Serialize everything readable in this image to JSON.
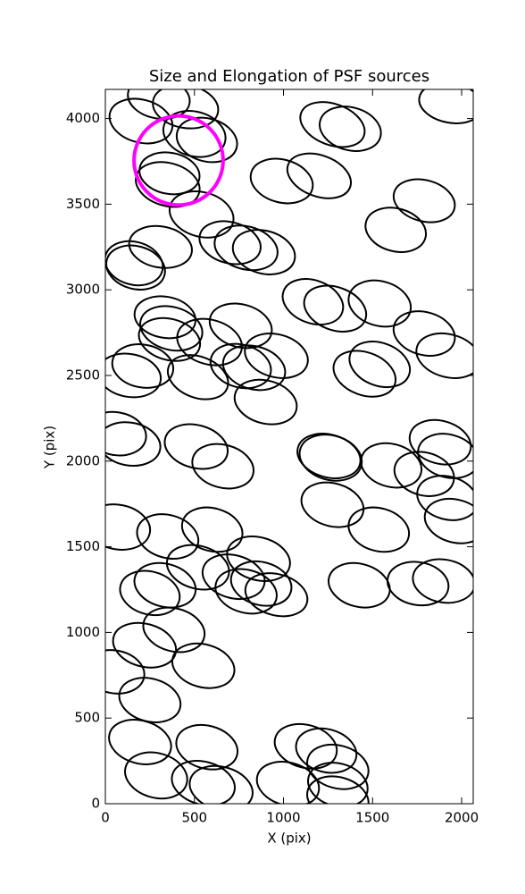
{
  "chart_data": {
    "type": "ellipse",
    "title": "Size and Elongation of PSF sources",
    "xlabel": "X (pix)",
    "ylabel": "Y (pix)",
    "xlim": [
      0,
      2065
    ],
    "ylim": [
      0,
      4170
    ],
    "xticks": [
      0,
      500,
      1000,
      1500,
      2000
    ],
    "yticks": [
      0,
      500,
      1000,
      1500,
      2000,
      2500,
      3000,
      3500,
      4000
    ],
    "series": [
      {
        "color": "#000000",
        "x": [
          200,
          300,
          450,
          500,
          570,
          1940,
          1275,
          1375,
          350,
          360,
          990,
          1200,
          1790,
          1630,
          540,
          310,
          160,
          170,
          700,
          790,
          890,
          1165,
          1290,
          1540,
          1790,
          1925,
          335,
          370,
          360,
          585,
          760,
          760,
          960,
          835,
          520,
          210,
          135,
          1540,
          1455,
          900,
          60,
          135,
          510,
          660,
          1265,
          1255,
          1605,
          1790,
          1880,
          1925,
          1920,
          1965,
          1275,
          1535,
          70,
          350,
          600,
          520,
          860,
          335,
          250,
          720,
          790,
          875,
          960,
          1425,
          1755,
          1900,
          385,
          220,
          50,
          550,
          250,
          195,
          570,
          285,
          550,
          650,
          1125,
          1240,
          1305,
          1025,
          1305,
          1305
        ],
        "y": [
          3985,
          4120,
          4070,
          3910,
          3875,
          4090,
          3965,
          3940,
          3615,
          3680,
          3635,
          3665,
          3520,
          3350,
          3440,
          3250,
          3155,
          3130,
          3275,
          3245,
          3220,
          2930,
          2890,
          2920,
          2745,
          2615,
          2840,
          2775,
          2710,
          2695,
          2790,
          2555,
          2615,
          2545,
          2490,
          2555,
          2500,
          2565,
          2510,
          2345,
          2160,
          2100,
          2085,
          1970,
          2020,
          2030,
          1975,
          1925,
          2110,
          2030,
          1785,
          1650,
          1745,
          1600,
          1615,
          1560,
          1600,
          1380,
          1430,
          1275,
          1230,
          1325,
          1240,
          1285,
          1220,
          1275,
          1285,
          1300,
          1015,
          925,
          770,
          805,
          605,
          360,
          330,
          165,
          120,
          90,
          335,
          310,
          215,
          115,
          110,
          30
        ],
        "width": [
          360,
          350,
          370,
          355,
          345,
          360,
          375,
          350,
          365,
          340,
          355,
          370,
          350,
          345,
          365,
          355,
          330,
          335,
          350,
          360,
          355,
          350,
          360,
          355,
          350,
          365,
          345,
          355,
          350,
          370,
          355,
          345,
          360,
          355,
          350,
          345,
          355,
          350,
          360,
          355,
          340,
          350,
          360,
          350,
          355,
          360,
          345,
          340,
          350,
          345,
          345,
          350,
          355,
          345,
          365,
          350,
          345,
          355,
          360,
          350,
          340,
          355,
          350,
          345,
          355,
          350,
          345,
          350,
          350,
          360,
          340,
          355,
          350,
          355,
          350,
          355,
          360,
          360,
          355,
          345,
          350,
          355,
          340,
          350
        ],
        "height": [
          250,
          240,
          250,
          260,
          250,
          230,
          240,
          250,
          250,
          240,
          250,
          240,
          240,
          250,
          260,
          240,
          250,
          250,
          240,
          250,
          250,
          250,
          250,
          260,
          250,
          250,
          240,
          250,
          240,
          260,
          250,
          250,
          250,
          250,
          240,
          250,
          250,
          250,
          250,
          250,
          250,
          250,
          250,
          250,
          260,
          250,
          250,
          250,
          250,
          250,
          250,
          250,
          250,
          250,
          260,
          250,
          250,
          250,
          250,
          250,
          250,
          250,
          250,
          250,
          240,
          250,
          250,
          250,
          250,
          250,
          250,
          250,
          250,
          250,
          250,
          260,
          250,
          250,
          250,
          250,
          250,
          250,
          250,
          250
        ],
        "angle": [
          -15,
          -10,
          -10,
          -15,
          -15,
          -10,
          -20,
          -15,
          -15,
          -10,
          -15,
          -20,
          -15,
          -15,
          -15,
          -10,
          -15,
          -15,
          -15,
          -15,
          -15,
          -20,
          -20,
          -15,
          -15,
          -15,
          -10,
          -15,
          -15,
          -15,
          -15,
          -15,
          -15,
          -15,
          -20,
          -10,
          -10,
          -20,
          -20,
          -15,
          -10,
          -10,
          -15,
          -15,
          -15,
          -15,
          -15,
          -15,
          -15,
          -15,
          -15,
          -15,
          -15,
          -15,
          -10,
          -15,
          -15,
          -15,
          -15,
          -15,
          -15,
          -15,
          -15,
          -15,
          -15,
          -15,
          -10,
          -10,
          -15,
          -15,
          -10,
          -15,
          -15,
          -15,
          -15,
          -15,
          -15,
          -15,
          -15,
          -15,
          -15,
          -15,
          -15,
          -15
        ]
      }
    ],
    "highlight": {
      "color": "#ff00ff",
      "x": 411,
      "y": 3755,
      "radius": 250
    }
  }
}
